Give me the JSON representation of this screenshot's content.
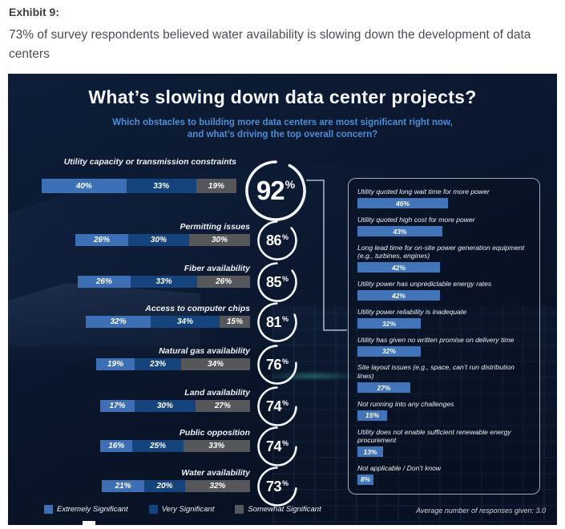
{
  "header": {
    "exhibit_label": "Exhibit 9:",
    "description": "73% of survey respondents believed water availability is slowing down the development of data centers"
  },
  "infographic": {
    "title": "What’s slowing down data center projects?",
    "subtitle_line1": "Which obstacles to building more data centers are most significant right now,",
    "subtitle_line2": "and what’s driving the top overall concern?",
    "footer_note": "Average number of responses given: 3.0"
  },
  "colors": {
    "extremely_significant": "#3d6fb7",
    "very_significant": "#15437c",
    "somewhat_significant": "#56575b",
    "driver_bar": "#4274ba",
    "ring": "#f2f4f7",
    "subtitle_accent": "#4d8ed6"
  },
  "legend": [
    {
      "label": "Extremely Significant",
      "color": "#3d6fb7"
    },
    {
      "label": "Very Significant",
      "color": "#15437c"
    },
    {
      "label": "Somewhat Significant",
      "color": "#56575b"
    }
  ],
  "chart_data": {
    "type": "bar",
    "title": "What’s slowing down data center projects?",
    "units": "percent of respondents",
    "obstacles": {
      "note": "stacked horizontal bars, total share shown in ring",
      "categories": [
        "Utility capacity or transmission constraints",
        "Permitting issues",
        "Fiber availability",
        "Access to computer chips",
        "Natural gas availability",
        "Land availability",
        "Public opposition",
        "Water availability"
      ],
      "series": [
        {
          "name": "Extremely Significant",
          "values": [
            40,
            26,
            26,
            32,
            19,
            17,
            16,
            21
          ]
        },
        {
          "name": "Very Significant",
          "values": [
            33,
            30,
            33,
            34,
            23,
            30,
            25,
            20
          ]
        },
        {
          "name": "Somewhat Significant",
          "values": [
            19,
            30,
            26,
            15,
            34,
            27,
            33,
            32
          ]
        }
      ],
      "totals": [
        92,
        86,
        85,
        81,
        76,
        74,
        74,
        73
      ]
    },
    "top_concern_drivers": {
      "note": "what is driving the top overall concern (utility capacity)",
      "items": [
        {
          "label": "Utility quoted long wait time for more power",
          "value": 46
        },
        {
          "label": "Utility quoted high cost for more power",
          "value": 43
        },
        {
          "label": "Long lead time for on-site power generation equipment (e.g., turbines, engines)",
          "value": 42
        },
        {
          "label": "Utility power has unpredictable energy rates",
          "value": 42
        },
        {
          "label": "Utility power reliability is inadequate",
          "value": 32
        },
        {
          "label": "Utility has given no written promise on delivery time",
          "value": 32
        },
        {
          "label": "Site layout issues (e.g., space, can’t run distribution lines)",
          "value": 27
        },
        {
          "label": "Not running into any challenges",
          "value": 15
        },
        {
          "label": "Utility does not enable sufficient renewable energy procurement",
          "value": 13
        },
        {
          "label": "Not applicable / Don’t know",
          "value": 8
        }
      ]
    },
    "average_responses": 3.0
  }
}
